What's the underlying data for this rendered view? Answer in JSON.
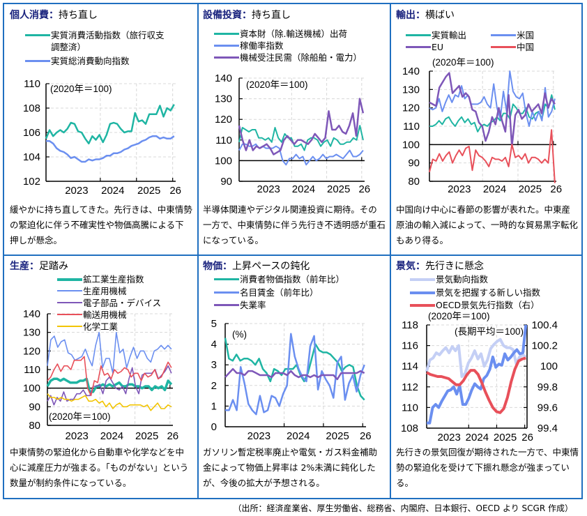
{
  "source_note": "（出所：経済産業省、厚生労働省、総務省、内閣府、日本銀行、OECD より SCGR 作成）",
  "panels": [
    {
      "key": "個人消費",
      "sep": "：",
      "status": "持ち直し",
      "description": "緩やかに持ち直してきた。先行きは、中東情勢の緊迫化に伴う不確実性や物価高騰による下押しが懸念。"
    },
    {
      "key": "設備投資",
      "sep": "：",
      "status": "持ち直し",
      "description": "半導体関連やデジタル関連投資に期待。その一方で、中東情勢に伴う先行き不透明感が重石になっている。"
    },
    {
      "key": "輸出",
      "sep": "：",
      "status": "横ばい",
      "description": "中国向け中心に春節の影響が表れた。中東産原油の輸入減によって、一時的な貿易黒字転化もあり得る。"
    },
    {
      "key": "生産",
      "sep": "：",
      "status": "足踏み",
      "description": "中東情勢の緊迫化から自動車や化学などを中心に減産圧力が強まる。「ものがない」という数量が制約条件になっている。"
    },
    {
      "key": "物価",
      "sep": "：",
      "status": "上昇ペースの鈍化",
      "description": "ガソリン暫定税率廃止や電気・ガス料金補助金によって物価上昇率は 2%未満に鈍化したが、今後の拡大が予想される。"
    },
    {
      "key": "景気",
      "sep": "：",
      "status": "先行きに懸念",
      "description": "先行きの景気回復が期待された一方で、中東情勢の緊迫化を受けて下振れ懸念が強まっている。"
    }
  ],
  "chart_data": [
    {
      "type": "line",
      "title": "個人消費",
      "annotation": "(2020年＝100)",
      "xlabel": "",
      "ylabel": "",
      "ylim": [
        102,
        110
      ],
      "yticks": [
        102,
        104,
        106,
        108,
        110
      ],
      "xtick_labels": [
        "2023",
        "2024",
        "2025",
        "26"
      ],
      "x_start": "2022-07",
      "grid": true,
      "series": [
        {
          "name": "実質消費活動指数（旅行収支調整済）",
          "color": "#1fb5a3",
          "values": [
            105.5,
            106.2,
            105.7,
            106.0,
            106.2,
            106.0,
            106.3,
            106.8,
            106.7,
            106.1,
            106.0,
            105.5,
            105.1,
            105.7,
            105.4,
            105.8,
            105.2,
            105.8,
            106.7,
            106.8,
            106.7,
            106.3,
            106.0,
            106.1,
            106.1,
            107.6,
            106.9,
            107.0,
            106.7,
            107.5,
            107.5,
            107.5,
            108.2,
            107.3,
            108.0,
            107.8,
            108.3
          ]
        },
        {
          "name": "実質総消費動向指数",
          "color": "#6b8ff0",
          "values": [
            105.3,
            105.3,
            105.1,
            104.7,
            104.5,
            104.4,
            104.2,
            103.9,
            104.0,
            103.8,
            103.6,
            103.6,
            103.8,
            103.7,
            103.8,
            103.8,
            103.9,
            104.1,
            104.1,
            104.3,
            104.3,
            104.4,
            104.6,
            104.7,
            104.9,
            105.0,
            105.1,
            105.3,
            105.4,
            105.6,
            105.7,
            105.7,
            105.5,
            105.6,
            105.5,
            105.5,
            105.7
          ]
        }
      ]
    },
    {
      "type": "line",
      "title": "設備投資",
      "annotation": "(2020年＝100)",
      "ylim": [
        90,
        140
      ],
      "yticks": [
        90,
        100,
        110,
        120,
        130,
        140
      ],
      "xtick_labels": [
        "2023",
        "2024",
        "2025",
        "26"
      ],
      "x_start": "2022-07",
      "grid": true,
      "series": [
        {
          "name": "資本財（除.輸送機械）出荷",
          "color": "#1fb5a3",
          "values": [
            109,
            116,
            115,
            114,
            115,
            115,
            111,
            111,
            110,
            111,
            109,
            116,
            111,
            109,
            113,
            111,
            111,
            107,
            107,
            108,
            105,
            110,
            111,
            111,
            110,
            107,
            109,
            110,
            107,
            111,
            110,
            108,
            108,
            109,
            109,
            111,
            110,
            117,
            110
          ]
        },
        {
          "name": "稼働率指数",
          "color": "#6b8ff0",
          "values": [
            105,
            108,
            108,
            107,
            107,
            108,
            106,
            107,
            106,
            106,
            106,
            107,
            106,
            100,
            98,
            101,
            101,
            103,
            101,
            102,
            98,
            100,
            102,
            100,
            101,
            103,
            101,
            102,
            102,
            103,
            102,
            101,
            103,
            105,
            102,
            102,
            103,
            105
          ]
        },
        {
          "name": "機械受注民需（除船舶・電力）",
          "color": "#7e57b8",
          "values": [
            117,
            110,
            105,
            110,
            105,
            107,
            106,
            107,
            108,
            106,
            103,
            104,
            105,
            110,
            112,
            110,
            108,
            110,
            110,
            109,
            108,
            110,
            113,
            111,
            109,
            111,
            124,
            115,
            115,
            117,
            114,
            113,
            117,
            123,
            112,
            130,
            123
          ]
        }
      ]
    },
    {
      "type": "line",
      "title": "輸出",
      "annotation": "(2020年＝100)",
      "ylim": [
        80,
        140
      ],
      "yticks": [
        80,
        90,
        100,
        110,
        120,
        130,
        140
      ],
      "xtick_labels": [
        "2023",
        "2024",
        "2025",
        "26"
      ],
      "x_start": "2022-07",
      "grid": true,
      "series": [
        {
          "name": "実質輸出",
          "color": "#1fb5a3",
          "values": [
            110,
            110,
            111,
            113,
            111,
            114,
            115,
            112,
            110,
            113,
            115,
            112,
            114,
            111,
            112,
            107,
            110,
            111,
            110,
            112,
            113,
            115,
            113,
            117,
            117,
            114,
            122,
            120,
            117,
            117,
            120,
            115,
            114,
            117,
            118,
            114,
            122,
            120,
            127,
            119
          ]
        },
        {
          "name": "米国",
          "color": "#6b8ff0",
          "values": [
            120,
            119,
            120,
            125,
            118,
            123,
            127,
            123,
            127,
            126,
            132,
            125,
            127,
            122,
            122,
            122,
            123,
            126,
            122,
            120,
            133,
            120,
            114,
            129,
            118,
            140,
            129,
            126,
            125,
            128,
            117,
            110,
            118,
            113,
            118,
            113,
            131,
            115,
            118,
            125
          ]
        },
        {
          "name": "EU",
          "color": "#7e57b8",
          "values": [
            123,
            122,
            121,
            131,
            134,
            137,
            139,
            128,
            130,
            132,
            126,
            128,
            126,
            119,
            118,
            112,
            110,
            102,
            107,
            115,
            111,
            120,
            113,
            107,
            127,
            99,
            116,
            119,
            114,
            116,
            122,
            118,
            120,
            122,
            117,
            128,
            120,
            125,
            122
          ]
        },
        {
          "name": "中国",
          "color": "#e8505a",
          "values": [
            85,
            92,
            91,
            95,
            91,
            94,
            96,
            90,
            94,
            97,
            94,
            98,
            99,
            86,
            97,
            94,
            93,
            91,
            88,
            93,
            92,
            92,
            91,
            93,
            88,
            100,
            93,
            94,
            92,
            95,
            90,
            93,
            93,
            92,
            90,
            92,
            90,
            108,
            79
          ]
        }
      ]
    },
    {
      "type": "line",
      "title": "生産",
      "annotation": "(2020年＝100)",
      "ylim": [
        80,
        140
      ],
      "yticks": [
        80,
        90,
        100,
        110,
        120,
        130,
        140
      ],
      "xtick_labels": [
        "2023",
        "2024",
        "2025",
        "26"
      ],
      "x_start": "2022-07",
      "grid": true,
      "series": [
        {
          "name": "鉱工業生産指数",
          "color": "#1fb5a3",
          "values": [
            101,
            104,
            105,
            105,
            104,
            105,
            104,
            103,
            103,
            103,
            104,
            104,
            105,
            98,
            98,
            101,
            101,
            102,
            101,
            102,
            101,
            102,
            103,
            101,
            101,
            102,
            102,
            101,
            101,
            100,
            101,
            101,
            99,
            101,
            100,
            101,
            99,
            104,
            102
          ]
        },
        {
          "name": "生産用機械",
          "color": "#6b8ff0",
          "values": [
            112,
            126,
            128,
            122,
            125,
            126,
            119,
            118,
            115,
            116,
            117,
            121,
            116,
            112,
            123,
            130,
            111,
            116,
            116,
            108,
            130,
            119,
            121,
            111,
            117,
            122,
            116,
            120,
            120,
            116,
            114,
            120,
            121,
            123,
            121,
            123,
            121
          ]
        },
        {
          "name": "電子部品・デバイス",
          "color": "#7e57b8",
          "values": [
            93,
            96,
            91,
            95,
            93,
            98,
            93,
            94,
            94,
            97,
            97,
            99,
            96,
            96,
            101,
            101,
            102,
            97,
            104,
            106,
            103,
            100,
            99,
            101,
            97,
            105,
            111,
            101,
            97,
            107,
            108,
            108,
            108,
            110,
            105,
            107,
            109,
            112,
            108
          ]
        },
        {
          "name": "輸送用機械",
          "color": "#e8505a",
          "values": [
            104,
            106,
            110,
            113,
            109,
            112,
            112,
            110,
            115,
            115,
            115,
            117,
            100,
            96,
            104,
            103,
            112,
            107,
            108,
            105,
            110,
            108,
            109,
            111,
            110,
            106,
            108,
            108,
            104,
            108,
            106,
            107,
            110,
            105,
            106,
            110,
            114,
            111
          ]
        },
        {
          "name": "化学工業",
          "color": "#f2c400",
          "values": [
            97,
            95,
            95,
            94,
            95,
            94,
            94,
            93,
            94,
            94,
            95,
            96,
            93,
            93,
            94,
            92,
            93,
            90,
            92,
            89,
            91,
            92,
            90,
            90,
            91,
            91,
            91,
            91,
            90,
            91,
            88,
            90,
            92,
            89,
            89,
            91,
            90
          ]
        }
      ]
    },
    {
      "type": "line",
      "title": "物価",
      "annotation": "(%)",
      "ylim": [
        0,
        5
      ],
      "yticks": [
        0,
        1,
        2,
        3,
        4,
        5
      ],
      "xtick_labels": [
        "2023",
        "2024",
        "2025",
        "26"
      ],
      "x_start": "2022-07",
      "grid": true,
      "series": [
        {
          "name": "消費者物価指数（前年比）",
          "color": "#1fb5a3",
          "values": [
            4.3,
            3.3,
            3.2,
            3.5,
            3.2,
            3.3,
            3.3,
            3.2,
            3.0,
            3.3,
            2.8,
            2.6,
            2.2,
            2.8,
            2.7,
            2.5,
            2.8,
            2.8,
            2.8,
            3.0,
            2.5,
            2.2,
            2.6,
            3.3,
            4.0,
            3.7,
            3.6,
            3.6,
            3.5,
            3.3,
            3.1,
            2.7,
            2.9,
            3.0,
            2.9,
            2.0,
            1.5,
            1.3
          ]
        },
        {
          "name": "名目賃金（前年比）",
          "color": "#6b8ff0",
          "values": [
            0.8,
            0.8,
            1.3,
            0.8,
            2.9,
            2.1,
            1.1,
            0.8,
            0.6,
            1.5,
            0.7,
            0.8,
            1.5,
            1.4,
            1.0,
            1.6,
            2.0,
            4.5,
            3.4,
            2.8,
            2.4,
            2.2,
            3.9,
            4.4,
            1.8,
            2.7,
            2.3,
            2.0,
            1.4,
            3.1,
            3.4,
            1.3,
            2.1,
            2.5,
            1.7,
            2.5,
            3.0
          ]
        },
        {
          "name": "失業率",
          "color": "#7e57b8",
          "values": [
            2.4,
            2.6,
            2.8,
            2.6,
            2.6,
            2.5,
            2.7,
            2.7,
            2.6,
            2.5,
            2.5,
            2.5,
            2.4,
            2.6,
            2.6,
            2.6,
            2.5,
            2.7,
            2.5,
            2.4,
            2.5,
            2.5,
            2.4,
            2.5,
            2.4,
            2.5,
            2.5,
            2.5,
            2.5,
            2.3,
            2.6,
            2.6,
            2.6,
            2.6,
            2.6,
            2.7,
            2.6
          ]
        }
      ]
    },
    {
      "type": "line",
      "title": "景気",
      "annotation": "(2020年＝100)",
      "annotation_right": "(長期平均＝100)",
      "ylim": [
        108,
        118
      ],
      "yticks": [
        108,
        110,
        112,
        114,
        116,
        118
      ],
      "ylim_right": [
        99.4,
        100.4
      ],
      "yticks_right": [
        "99.4",
        "99.6",
        "99.8",
        "100",
        "100.2",
        "100.4"
      ],
      "xtick_labels": [
        "2023",
        "2024",
        "2025",
        "26"
      ],
      "x_start": "2022-07",
      "grid": true,
      "series": [
        {
          "name": "景気動向指数",
          "color": "#c4cff5",
          "axis": "left",
          "values": [
            113.5,
            114.6,
            114.8,
            115.3,
            115.1,
            115.5,
            115.8,
            115.3,
            115.9,
            115.5,
            116.0,
            113.0,
            113.3,
            114.3,
            114.8,
            115.5,
            114.7,
            115.2,
            114.0,
            114.6,
            115.7,
            116.1,
            116.4,
            116.6,
            116.0,
            115.8,
            115.8,
            115.6,
            114.2,
            114.9,
            115.1,
            114.9
          ]
        },
        {
          "name": "景気を把握する新しい指数",
          "color": "#6b8ff0",
          "axis": "left",
          "values": [
            108.5,
            108.5,
            110.0,
            110.3,
            110.0,
            110.6,
            111.1,
            111.6,
            111.7,
            112.0,
            111.3,
            112.1,
            110.3,
            110.3,
            110.9,
            111.7,
            112.3,
            112.0,
            111.8,
            112.8,
            113.1,
            113.7,
            114.9,
            113.9,
            114.2,
            114.1,
            115.2,
            114.6,
            114.9,
            115.3,
            115.6,
            115.2,
            115.3,
            118.0
          ]
        },
        {
          "name": "OECD景気先行指数（右）",
          "color": "#e8505a",
          "axis": "right",
          "values": [
            99.94,
            99.92,
            99.91,
            99.9,
            99.9,
            99.89,
            99.88,
            99.85,
            99.82,
            99.82,
            99.86,
            99.92,
            99.96,
            99.96,
            99.92,
            99.84,
            99.75,
            99.67,
            99.6,
            99.56,
            99.55,
            99.59,
            99.7,
            99.85,
            99.97,
            100.05,
            100.07,
            100.08
          ]
        }
      ]
    }
  ]
}
